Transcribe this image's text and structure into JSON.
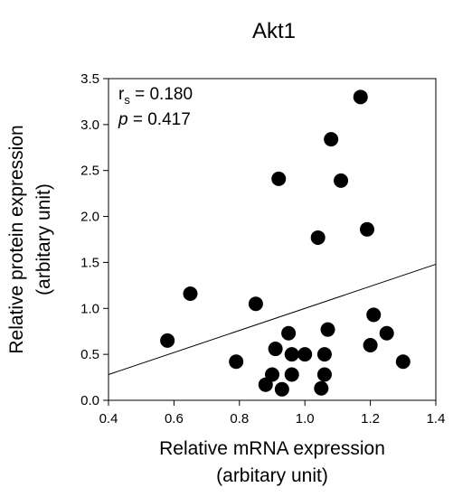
{
  "chart_data": {
    "type": "scatter",
    "title": "Akt1",
    "xlabel_line1": "Relative mRNA expression",
    "xlabel_line2": "(arbitary unit)",
    "ylabel_line1": "Relative protein expression",
    "ylabel_line2": "(arbitary unit)",
    "xlim": [
      0.4,
      1.4
    ],
    "ylim": [
      0.0,
      3.5
    ],
    "xticks": [
      "0.4",
      "0.6",
      "0.8",
      "1.0",
      "1.2",
      "1.4"
    ],
    "yticks": [
      "0.0",
      "0.5",
      "1.0",
      "1.5",
      "2.0",
      "2.5",
      "3.0",
      "3.5"
    ],
    "grid": false,
    "legend": "none",
    "annotations": {
      "rs_symbol": "r",
      "rs_sub": "s",
      "rs_value": " = 0.180",
      "p_symbol": "p",
      "p_value": " = 0.417"
    },
    "trendline": {
      "x": [
        0.4,
        1.4
      ],
      "y": [
        0.28,
        1.48
      ]
    },
    "points": [
      {
        "x": 0.58,
        "y": 0.65
      },
      {
        "x": 0.65,
        "y": 1.16
      },
      {
        "x": 0.79,
        "y": 0.42
      },
      {
        "x": 0.85,
        "y": 1.05
      },
      {
        "x": 0.88,
        "y": 0.17
      },
      {
        "x": 0.9,
        "y": 0.28
      },
      {
        "x": 0.91,
        "y": 0.56
      },
      {
        "x": 0.92,
        "y": 2.41
      },
      {
        "x": 0.93,
        "y": 0.12
      },
      {
        "x": 0.95,
        "y": 0.73
      },
      {
        "x": 0.96,
        "y": 0.5
      },
      {
        "x": 0.96,
        "y": 0.28
      },
      {
        "x": 1.0,
        "y": 0.5
      },
      {
        "x": 1.04,
        "y": 1.77
      },
      {
        "x": 1.05,
        "y": 0.13
      },
      {
        "x": 1.06,
        "y": 0.5
      },
      {
        "x": 1.07,
        "y": 0.77
      },
      {
        "x": 1.06,
        "y": 0.28
      },
      {
        "x": 1.08,
        "y": 2.84
      },
      {
        "x": 1.11,
        "y": 2.39
      },
      {
        "x": 1.17,
        "y": 3.3
      },
      {
        "x": 1.19,
        "y": 1.86
      },
      {
        "x": 1.2,
        "y": 0.6
      },
      {
        "x": 1.21,
        "y": 0.93
      },
      {
        "x": 1.25,
        "y": 0.73
      },
      {
        "x": 1.3,
        "y": 0.42
      }
    ],
    "colors": {
      "points": "#000000",
      "line": "#000000",
      "axes": "#000000"
    }
  }
}
